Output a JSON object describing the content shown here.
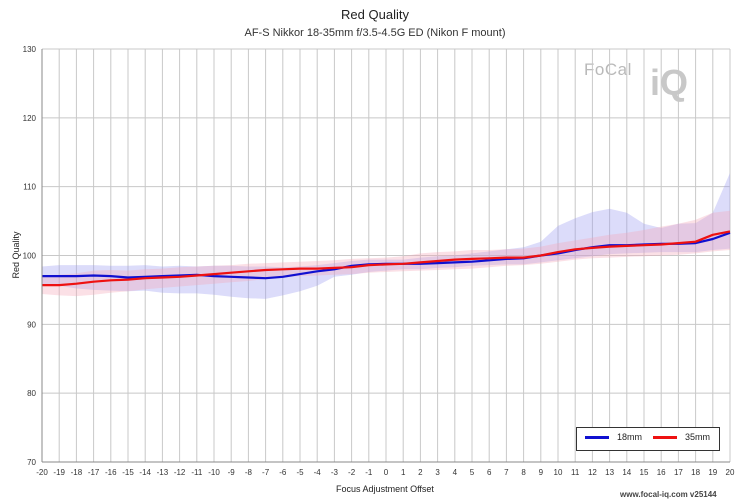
{
  "header": {
    "title": "Red Quality",
    "subtitle": "AF-S Nikkor 18-35mm f/3.5-4.5G ED (Nikon F mount)"
  },
  "logo": {
    "focal": "FoCal",
    "iq": "iQ"
  },
  "footer": {
    "watermark": "www.focal-iq.com  v25144"
  },
  "chart_data": {
    "type": "line",
    "title": "Red Quality",
    "subtitle": "AF-S Nikkor 18-35mm f/3.5-4.5G ED (Nikon F mount)",
    "xlabel": "Focus Adjustment Offset",
    "ylabel": "Red Quality",
    "xlim": [
      -20,
      20
    ],
    "ylim": [
      70,
      130
    ],
    "yticks": [
      70,
      80,
      90,
      100,
      110,
      120,
      130
    ],
    "xticks": [
      -20,
      -19,
      -18,
      -17,
      -16,
      -15,
      -14,
      -13,
      -12,
      -11,
      -10,
      -9,
      -8,
      -7,
      -6,
      -5,
      -4,
      -3,
      -2,
      -1,
      0,
      1,
      2,
      3,
      4,
      5,
      6,
      7,
      8,
      9,
      10,
      11,
      12,
      13,
      14,
      15,
      16,
      17,
      18,
      19,
      20
    ],
    "grid": true,
    "legend_position": "bottom-right",
    "x": [
      -20,
      -19,
      -18,
      -17,
      -16,
      -15,
      -14,
      -13,
      -12,
      -11,
      -10,
      -9,
      -8,
      -7,
      -6,
      -5,
      -4,
      -3,
      -2,
      -1,
      0,
      1,
      2,
      3,
      4,
      5,
      6,
      7,
      8,
      9,
      10,
      11,
      12,
      13,
      14,
      15,
      16,
      17,
      18,
      19,
      20
    ],
    "series": [
      {
        "name": "18mm",
        "color": "#1010d0",
        "band_color": "#9a9af0",
        "values": [
          97.0,
          97.0,
          97.0,
          97.1,
          97.0,
          96.8,
          96.9,
          97.0,
          97.1,
          97.2,
          97.0,
          96.9,
          96.8,
          96.7,
          96.9,
          97.3,
          97.7,
          98.0,
          98.5,
          98.7,
          98.8,
          98.8,
          98.8,
          98.9,
          99.0,
          99.1,
          99.3,
          99.5,
          99.6,
          100.0,
          100.3,
          100.8,
          101.2,
          101.5,
          101.5,
          101.6,
          101.7,
          101.7,
          101.8,
          102.4,
          103.3
        ],
        "upper": [
          98.4,
          98.6,
          98.6,
          98.6,
          98.5,
          98.5,
          98.6,
          98.4,
          98.5,
          98.4,
          98.5,
          98.5,
          98.4,
          98.4,
          98.3,
          98.4,
          98.6,
          98.9,
          99.2,
          99.4,
          99.4,
          99.4,
          99.7,
          99.9,
          100.0,
          100.3,
          100.6,
          100.9,
          101.2,
          102.0,
          104.3,
          105.4,
          106.3,
          106.8,
          106.2,
          104.6,
          104.0,
          104.6,
          104.7,
          106.2,
          112.0
        ],
        "lower": [
          95.8,
          95.6,
          95.2,
          95.0,
          94.9,
          94.8,
          94.9,
          94.6,
          94.5,
          94.5,
          94.3,
          94.0,
          93.8,
          93.7,
          94.2,
          94.8,
          95.6,
          96.9,
          97.2,
          97.6,
          97.8,
          98.0,
          98.0,
          98.2,
          98.3,
          98.5,
          98.6,
          98.7,
          98.7,
          99.0,
          99.3,
          99.6,
          99.9,
          100.2,
          100.3,
          100.4,
          100.5,
          100.5,
          100.5,
          100.8,
          101.0
        ]
      },
      {
        "name": "35mm",
        "color": "#ee1111",
        "band_color": "#f4a6b6",
        "values": [
          95.7,
          95.7,
          95.9,
          96.2,
          96.4,
          96.5,
          96.7,
          96.8,
          96.9,
          97.1,
          97.3,
          97.5,
          97.7,
          97.9,
          98.0,
          98.1,
          98.1,
          98.2,
          98.3,
          98.6,
          98.7,
          98.8,
          99.0,
          99.2,
          99.4,
          99.5,
          99.6,
          99.7,
          99.7,
          100.0,
          100.5,
          100.9,
          101.1,
          101.3,
          101.4,
          101.5,
          101.6,
          101.8,
          102.0,
          103.0,
          103.5
        ],
        "upper": [
          97.1,
          97.2,
          97.4,
          97.8,
          97.9,
          97.8,
          98.0,
          98.1,
          98.3,
          98.4,
          98.5,
          98.6,
          98.8,
          98.9,
          99.0,
          99.1,
          99.2,
          99.3,
          99.5,
          99.6,
          99.7,
          99.9,
          100.3,
          100.5,
          100.6,
          100.8,
          100.8,
          100.9,
          101.0,
          101.3,
          101.8,
          102.2,
          102.6,
          103.0,
          103.3,
          103.7,
          104.2,
          104.6,
          105.2,
          106.2,
          106.5
        ],
        "lower": [
          94.4,
          94.2,
          94.1,
          94.3,
          94.6,
          94.8,
          95.1,
          95.3,
          95.5,
          95.7,
          95.9,
          96.1,
          96.3,
          96.6,
          96.8,
          97.0,
          97.1,
          97.2,
          97.3,
          97.5,
          97.6,
          97.7,
          97.8,
          97.9,
          98.0,
          98.1,
          98.3,
          98.5,
          98.6,
          98.8,
          99.1,
          99.4,
          99.6,
          99.7,
          99.8,
          99.9,
          100.0,
          100.1,
          100.3,
          100.6,
          100.8
        ]
      }
    ]
  }
}
